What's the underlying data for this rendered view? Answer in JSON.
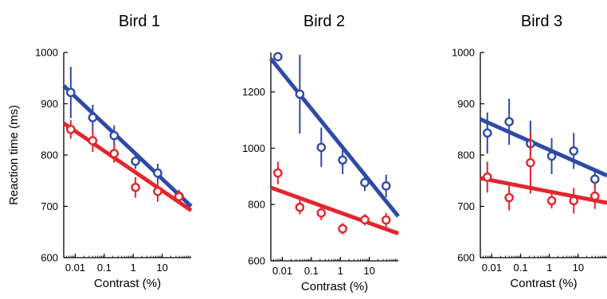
{
  "chart_data": [
    {
      "type": "scatter",
      "title": "Bird 1",
      "xlabel": "Contrast (%)",
      "ylabel": "Reaction time (ms)",
      "xscale": "log",
      "xlim": [
        0.004,
        100
      ],
      "ylim": [
        600,
        1000
      ],
      "xticks": [
        0.01,
        0.1,
        1,
        10
      ],
      "xtick_labels": [
        "0.01",
        "0.1",
        "1",
        "10"
      ],
      "yticks": [
        600,
        700,
        800,
        900,
        1000
      ],
      "ytick_labels": [
        "600",
        "700",
        "800",
        "900",
        "1000"
      ],
      "series": [
        {
          "color": "#2f4aa6",
          "x": [
            0.007,
            0.04,
            0.22,
            1.2,
            7,
            38
          ],
          "y": [
            922,
            873,
            838,
            788,
            765,
            720
          ],
          "err": [
            50,
            25,
            20,
            15,
            18,
            12
          ],
          "fit": [
            [
              0.004,
              935
            ],
            [
              100,
              700
            ]
          ]
        },
        {
          "color": "#e3262d",
          "x": [
            0.007,
            0.04,
            0.22,
            1.2,
            7,
            38
          ],
          "y": [
            850,
            828,
            803,
            737,
            729,
            719
          ],
          "err": [
            18,
            22,
            18,
            20,
            20,
            12
          ],
          "fit": [
            [
              0.004,
              862
            ],
            [
              100,
              692
            ]
          ]
        }
      ]
    },
    {
      "type": "scatter",
      "title": "Bird 2",
      "xlabel": "Contrast (%)",
      "ylabel": "",
      "xscale": "log",
      "xlim": [
        0.004,
        100
      ],
      "ylim": [
        600,
        1340
      ],
      "xticks": [
        0.01,
        0.1,
        1,
        10
      ],
      "xtick_labels": [
        "0.01",
        "0.1",
        "1",
        "10"
      ],
      "yticks": [
        600,
        800,
        1000,
        1200
      ],
      "ytick_labels": [
        "600",
        "800",
        "1000",
        "1200"
      ],
      "series": [
        {
          "color": "#2f4aa6",
          "x": [
            0.007,
            0.04,
            0.22,
            1.2,
            7,
            38
          ],
          "y": [
            1325,
            1192,
            1003,
            958,
            878,
            866
          ],
          "err": [
            15,
            140,
            70,
            50,
            30,
            40
          ],
          "fit": [
            [
              0.004,
              1318
            ],
            [
              100,
              758
            ]
          ]
        },
        {
          "color": "#e3262d",
          "x": [
            0.007,
            0.04,
            0.22,
            1.2,
            7,
            38
          ],
          "y": [
            912,
            790,
            770,
            714,
            746,
            745
          ],
          "err": [
            40,
            25,
            25,
            20,
            20,
            25
          ],
          "fit": [
            [
              0.004,
              860
            ],
            [
              100,
              697
            ]
          ]
        }
      ]
    },
    {
      "type": "scatter",
      "title": "Bird 3",
      "xlabel": "Contrast (%)",
      "ylabel": "",
      "xscale": "log",
      "xlim": [
        0.004,
        100
      ],
      "ylim": [
        600,
        1000
      ],
      "xticks": [
        0.01,
        0.1,
        1,
        10
      ],
      "xtick_labels": [
        "0.01",
        "0.1",
        "1",
        "10"
      ],
      "yticks": [
        600,
        700,
        800,
        900,
        1000
      ],
      "ytick_labels": [
        "600",
        "700",
        "800",
        "900",
        "1000"
      ],
      "series": [
        {
          "color": "#2f4aa6",
          "x": [
            0.007,
            0.04,
            0.22,
            1.2,
            7,
            38
          ],
          "y": [
            843,
            865,
            822,
            798,
            808,
            753
          ],
          "err": [
            40,
            45,
            45,
            35,
            35,
            20
          ],
          "fit": [
            [
              0.004,
              870
            ],
            [
              100,
              760
            ]
          ]
        },
        {
          "color": "#e3262d",
          "x": [
            0.007,
            0.04,
            0.22,
            1.2,
            7,
            38
          ],
          "y": [
            757,
            717,
            785,
            711,
            711,
            720
          ],
          "err": [
            30,
            25,
            60,
            15,
            25,
            25
          ],
          "fit": [
            [
              0.004,
              755
            ],
            [
              100,
              707
            ]
          ]
        }
      ]
    }
  ]
}
